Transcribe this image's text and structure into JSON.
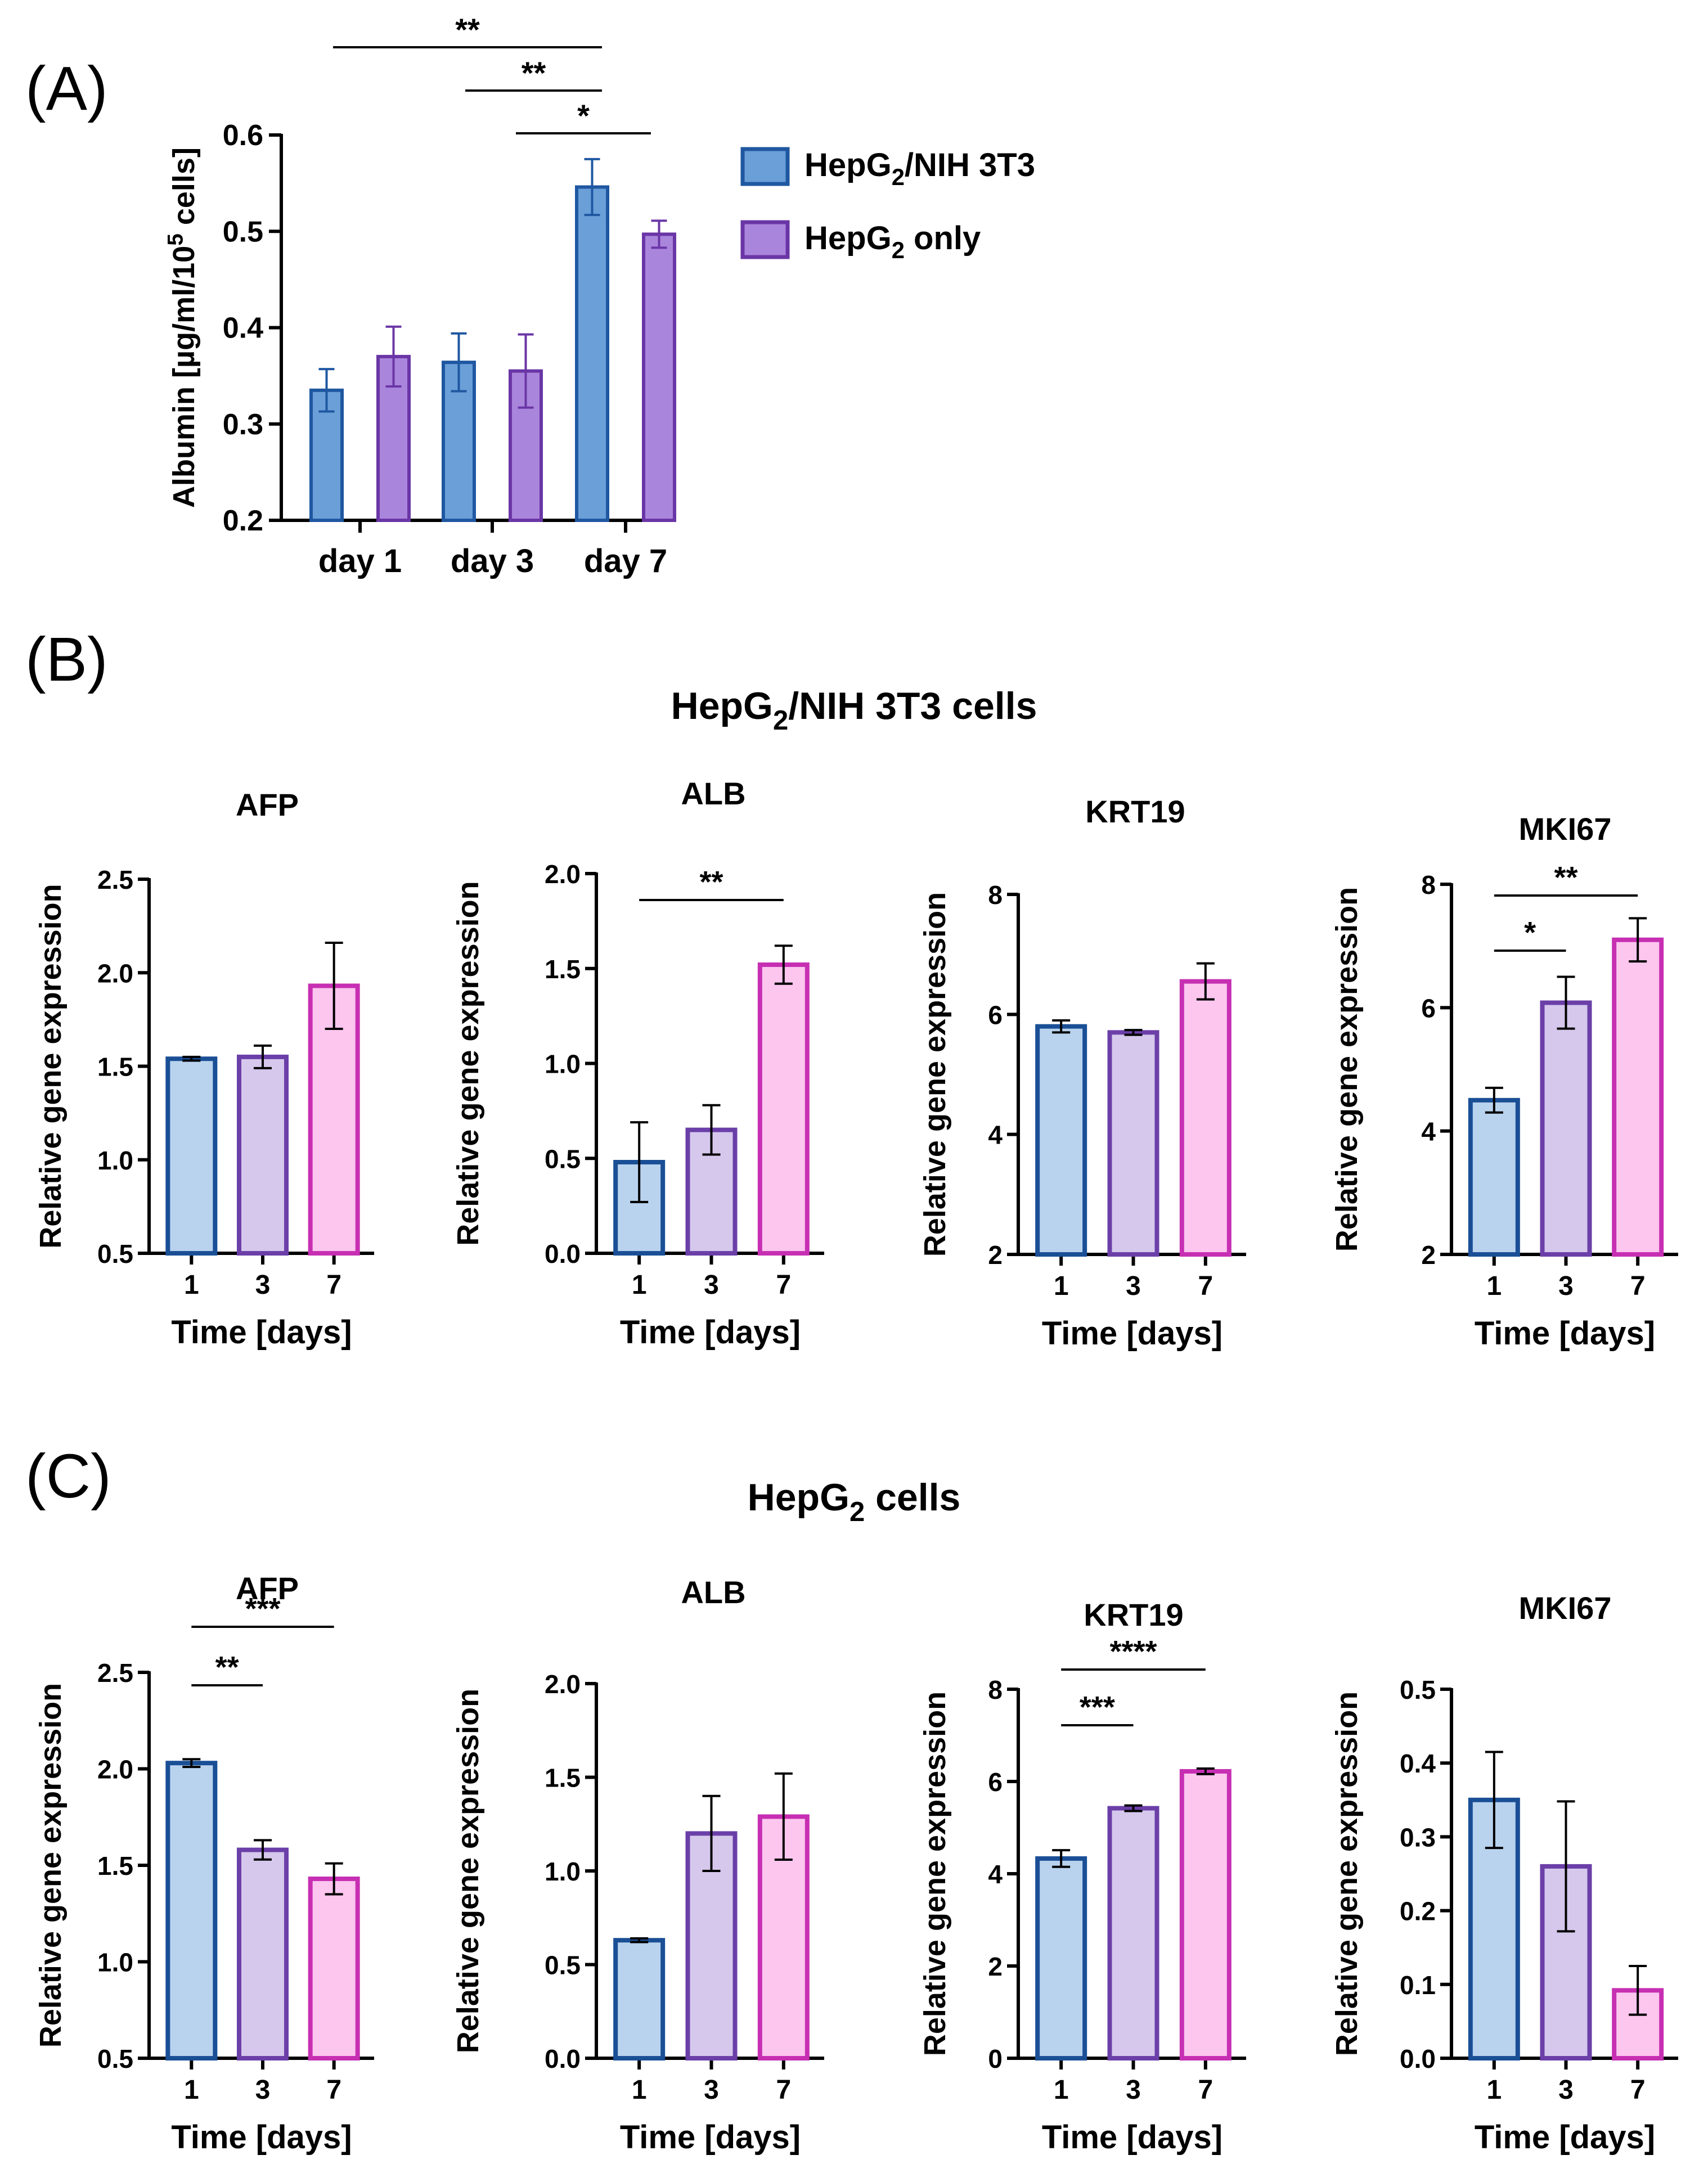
{
  "chart_data": [
    {
      "type": "bar",
      "panel": "(A)",
      "ylabel": "Albumin [µg/ml/10^5 cells]",
      "ylim": [
        0.2,
        0.6
      ],
      "yticks": [
        "0.2",
        "0.3",
        "0.4",
        "0.5",
        "0.6"
      ],
      "categories": [
        "day 1",
        "day 3",
        "day 7"
      ],
      "series": [
        {
          "name": "HepG2/NIH 3T3",
          "values": [
            0.335,
            0.364,
            0.546
          ],
          "errors": [
            0.022,
            0.03,
            0.029
          ],
          "fill": "#6a9fd8",
          "stroke": "#1f57a1"
        },
        {
          "name": "HepG2 only",
          "values": [
            0.37,
            0.355,
            0.497
          ],
          "errors": [
            0.031,
            0.038,
            0.014
          ],
          "fill": "#aa85dc",
          "stroke": "#6a36a6"
        }
      ],
      "significance": [
        {
          "label": "**",
          "from": "day 1",
          "to": "day 7"
        },
        {
          "label": "**",
          "from": "day 3",
          "to": "day 7"
        },
        {
          "label": "*",
          "from": "day 3 HepG2 only",
          "to": "day 7 HepG2 only"
        }
      ]
    },
    {
      "type": "bar",
      "panel": "(B)",
      "group_title": "HepG2/NIH 3T3 cells",
      "title": "AFP",
      "xlabel": "Time [days]",
      "ylabel": "Relative gene expression",
      "ylim": [
        0.5,
        2.5
      ],
      "yticks": [
        "0.5",
        "1.0",
        "1.5",
        "2.0",
        "2.5"
      ],
      "categories": [
        "1",
        "3",
        "7"
      ],
      "values": [
        1.54,
        1.55,
        1.93
      ],
      "errors": [
        0.01,
        0.06,
        0.23
      ],
      "significance": []
    },
    {
      "type": "bar",
      "panel": "(B)",
      "title": "ALB",
      "xlabel": "Time [days]",
      "ylabel": "Relative gene expression",
      "ylim": [
        0.0,
        2.0
      ],
      "yticks": [
        "0.0",
        "0.5",
        "1.0",
        "1.5",
        "2.0"
      ],
      "categories": [
        "1",
        "3",
        "7"
      ],
      "values": [
        0.48,
        0.65,
        1.52
      ],
      "errors": [
        0.21,
        0.13,
        0.1
      ],
      "significance": [
        {
          "label": "**",
          "from": "1",
          "to": "7"
        }
      ]
    },
    {
      "type": "bar",
      "panel": "(B)",
      "title": "KRT19",
      "xlabel": "Time [days]",
      "ylabel": "Relative gene expression",
      "ylim": [
        2,
        8
      ],
      "yticks": [
        "2",
        "4",
        "6",
        "8"
      ],
      "categories": [
        "1",
        "3",
        "7"
      ],
      "values": [
        5.8,
        5.7,
        6.55
      ],
      "errors": [
        0.1,
        0.04,
        0.3
      ],
      "significance": []
    },
    {
      "type": "bar",
      "panel": "(B)",
      "title": "MKI67",
      "xlabel": "Time [days]",
      "ylabel": "Relative gene expression",
      "ylim": [
        2,
        8
      ],
      "yticks": [
        "2",
        "4",
        "6",
        "8"
      ],
      "categories": [
        "1",
        "3",
        "7"
      ],
      "values": [
        4.5,
        6.08,
        7.1
      ],
      "errors": [
        0.2,
        0.42,
        0.35
      ],
      "significance": [
        {
          "label": "*",
          "from": "1",
          "to": "3"
        },
        {
          "label": "**",
          "from": "1",
          "to": "7"
        }
      ]
    },
    {
      "type": "bar",
      "panel": "(C)",
      "group_title": "HepG2 cells",
      "title": "AFP",
      "xlabel": "Time [days]",
      "ylabel": "Relative gene expression",
      "ylim": [
        0.5,
        2.5
      ],
      "yticks": [
        "0.5",
        "1.0",
        "1.5",
        "2.0",
        "2.5"
      ],
      "categories": [
        "1",
        "3",
        "7"
      ],
      "values": [
        2.03,
        1.58,
        1.43
      ],
      "errors": [
        0.02,
        0.05,
        0.08
      ],
      "significance": [
        {
          "label": "**",
          "from": "1",
          "to": "3"
        },
        {
          "label": "***",
          "from": "1",
          "to": "7"
        }
      ]
    },
    {
      "type": "bar",
      "panel": "(C)",
      "title": "ALB",
      "xlabel": "Time [days]",
      "ylabel": "Relative gene expression",
      "ylim": [
        0.0,
        2.0
      ],
      "yticks": [
        "0.0",
        "0.5",
        "1.0",
        "1.5",
        "2.0"
      ],
      "categories": [
        "1",
        "3",
        "7"
      ],
      "values": [
        0.63,
        1.2,
        1.29
      ],
      "errors": [
        0.01,
        0.2,
        0.23
      ],
      "significance": []
    },
    {
      "type": "bar",
      "panel": "(C)",
      "title": "KRT19",
      "xlabel": "Time [days]",
      "ylabel": "Relative gene expression",
      "ylim": [
        0,
        8
      ],
      "yticks": [
        "0",
        "2",
        "4",
        "6",
        "8"
      ],
      "categories": [
        "1",
        "3",
        "7"
      ],
      "values": [
        4.33,
        5.42,
        6.22
      ],
      "errors": [
        0.18,
        0.06,
        0.06
      ],
      "significance": [
        {
          "label": "***",
          "from": "1",
          "to": "3"
        },
        {
          "label": "****",
          "from": "1",
          "to": "7"
        }
      ]
    },
    {
      "type": "bar",
      "panel": "(C)",
      "title": "MKI67",
      "xlabel": "Time [days]",
      "ylabel": "Relative gene expression",
      "ylim": [
        0.0,
        0.5
      ],
      "yticks": [
        "0.0",
        "0.1",
        "0.2",
        "0.3",
        "0.4",
        "0.5"
      ],
      "categories": [
        "1",
        "3",
        "7"
      ],
      "values": [
        0.35,
        0.26,
        0.092
      ],
      "errors": [
        0.065,
        0.088,
        0.033
      ],
      "significance": []
    }
  ],
  "colors": {
    "day1_fill": "#b9d3ee",
    "day1_stroke": "#1a4f96",
    "day3_fill": "#d6c8ec",
    "day3_stroke": "#6b3fa8",
    "day7_fill": "#fcc6ef",
    "day7_stroke": "#c72fb3"
  }
}
